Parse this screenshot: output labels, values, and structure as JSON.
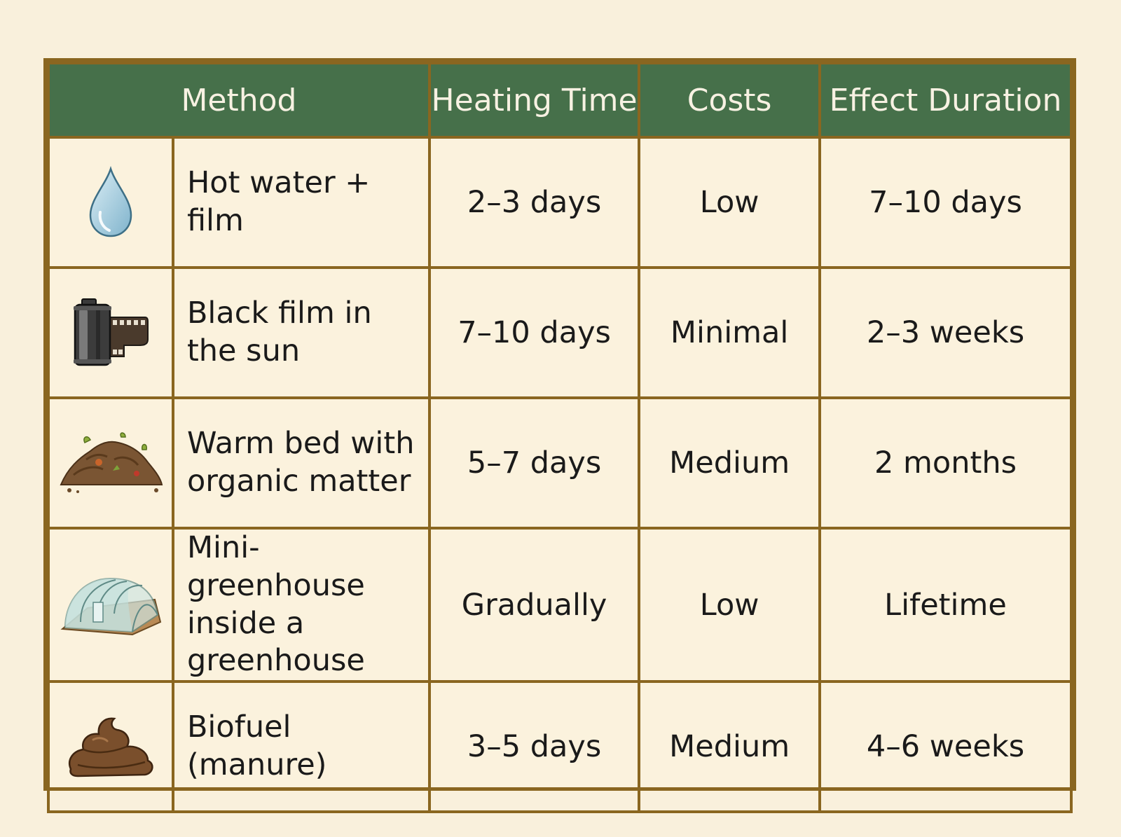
{
  "table": {
    "headers": {
      "method": "Method",
      "heating_time": "Heating Time",
      "costs": "Costs",
      "effect_duration": "Effect Duration"
    },
    "rows": [
      {
        "icon": "water-drop-icon",
        "method": "Hot water + film",
        "heating_time": "2–3 days",
        "costs": "Low",
        "effect_duration": "7–10 days"
      },
      {
        "icon": "film-roll-icon",
        "method": "Black film in the sun",
        "heating_time": "7–10 days",
        "costs": "Minimal",
        "effect_duration": "2–3 weeks"
      },
      {
        "icon": "compost-pile-icon",
        "method": "Warm bed with organic matter",
        "heating_time": "5–7 days",
        "costs": "Medium",
        "effect_duration": "2 months"
      },
      {
        "icon": "greenhouse-icon",
        "method": "Mini-greenhouse inside a greenhouse",
        "heating_time": "Gradually",
        "costs": "Low",
        "effect_duration": "Lifetime"
      },
      {
        "icon": "manure-icon",
        "method": "Biofuel (manure)",
        "heating_time": "3–5 days",
        "costs": "Medium",
        "effect_duration": "4–6 weeks"
      }
    ]
  },
  "colors": {
    "header_bg": "#46704a",
    "border": "#8a6620",
    "page_bg": "#f9f0dc"
  }
}
